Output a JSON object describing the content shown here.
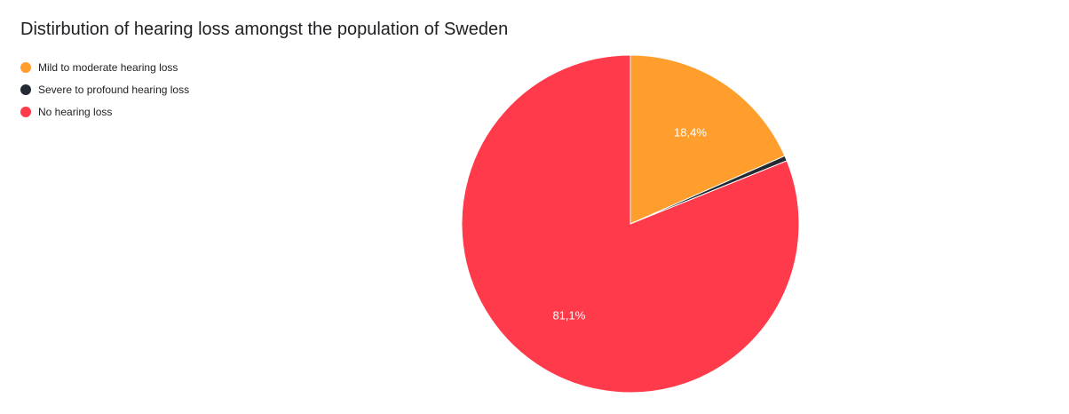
{
  "chart_data": {
    "type": "pie",
    "title": "Distirbution of hearing loss amongst the population of Sweden",
    "legend_position": "top-left",
    "slices": [
      {
        "name": "Mild to moderate hearing loss",
        "value": 18.4,
        "label": "18,4%",
        "color": "#ff9e2c"
      },
      {
        "name": "Severe to profound hearing loss",
        "value": 0.5,
        "label": "",
        "color": "#232a31"
      },
      {
        "name": "No hearing loss",
        "value": 81.1,
        "label": "81,1%",
        "color": "#ff3a4a"
      }
    ]
  }
}
